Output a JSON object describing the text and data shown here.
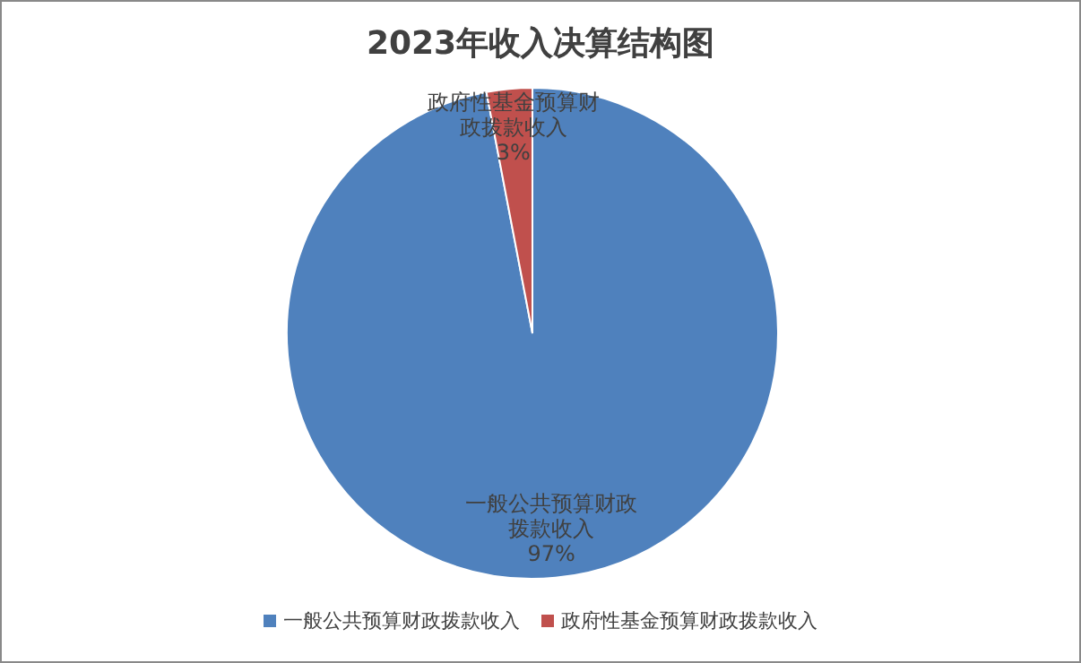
{
  "chart_data": {
    "type": "pie",
    "title": "2023年收入决算结构图",
    "categories": [
      "一般公共预算财政拨款收入",
      "政府性基金预算财政拨款收入"
    ],
    "values": [
      97,
      3
    ],
    "colors": [
      "#4f81bd",
      "#c0504d"
    ],
    "value_labels": [
      "97%",
      "3%"
    ],
    "legend": "bottom"
  }
}
